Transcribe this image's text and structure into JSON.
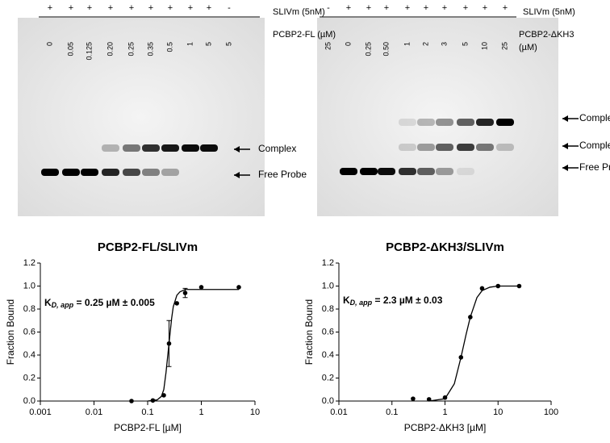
{
  "gels": [
    {
      "sign_row": [
        "+",
        "+",
        "+",
        "+",
        "+",
        "+",
        "+",
        "+",
        "+",
        "-"
      ],
      "sign_label": "SLIVm (5nM)",
      "conc_row": [
        "0",
        "0.05",
        "0.125",
        "0.20",
        "0.25",
        "0.35",
        "0.5",
        "1",
        "5",
        "5"
      ],
      "conc_label": [
        "PCBP2-FL (µM)"
      ],
      "arrows": [
        "Complex",
        "Free Probe"
      ]
    },
    {
      "sign_row": [
        "-",
        "+",
        "+",
        "+",
        "+",
        "+",
        "+",
        "+",
        "+",
        "+"
      ],
      "sign_label": "SLIVm (5nM)",
      "conc_row": [
        "25",
        "0",
        "0.25",
        "0.50",
        "1",
        "2",
        "3",
        "5",
        "10",
        "25"
      ],
      "conc_label": [
        "PCBP2-ΔKH3",
        "(µM)"
      ],
      "arrows": [
        "Complex II",
        "Complex I",
        "Free Probe"
      ]
    }
  ],
  "chart_data": [
    {
      "type": "scatter",
      "title": "PCBP2-FL/SLIVm",
      "x_label": "PCBP2-FL [µM]",
      "y_label": "Fraction Bound",
      "xscale": "log",
      "xlim": [
        0.001,
        10
      ],
      "xticks": [
        0.001,
        0.01,
        0.1,
        1,
        10
      ],
      "ylim": [
        0,
        1.2
      ],
      "yticks": [
        {
          "value": 0,
          "label": "0.0"
        },
        0.2,
        0.4,
        0.6,
        0.8,
        {
          "value": 1,
          "label": "1.0"
        },
        1.2
      ],
      "color": "#000000",
      "annotation": {
        "k": "K",
        "sub": "D, app",
        "text": " = 0.25 µM ± 0.005"
      },
      "points": {
        "x": [
          0.05,
          0.125,
          0.2,
          0.25,
          0.35,
          0.5,
          1,
          5
        ],
        "values": [
          0.0,
          0.005,
          0.05,
          0.5,
          0.85,
          0.94,
          0.99,
          0.99
        ],
        "errors": [
          null,
          null,
          null,
          0.2,
          null,
          0.04,
          null,
          null
        ]
      },
      "curve": {
        "x": [
          0.1,
          0.15,
          0.18,
          0.2,
          0.22,
          0.25,
          0.28,
          0.3,
          0.35,
          0.4,
          0.5,
          1,
          5
        ],
        "values": [
          0,
          0.01,
          0.04,
          0.1,
          0.25,
          0.5,
          0.72,
          0.82,
          0.92,
          0.95,
          0.97,
          0.97,
          0.97
        ]
      }
    },
    {
      "type": "scatter",
      "title": "PCBP2-ΔKH3/SLIVm",
      "x_label": "PCBP2-ΔKH3 [µM]",
      "y_label": "Fraction Bound",
      "xscale": "log",
      "xlim": [
        0.01,
        100
      ],
      "xticks": [
        0.01,
        0.1,
        1,
        10,
        100
      ],
      "ylim": [
        0,
        1.2
      ],
      "yticks": [
        {
          "value": 0,
          "label": "0.0"
        },
        0.2,
        0.4,
        0.6,
        0.8,
        {
          "value": 1,
          "label": "1.0"
        },
        1.2
      ],
      "color": "#000000",
      "annotation": {
        "k": "K",
        "sub": "D, app",
        "text": " = 2.3 µM ± 0.03"
      },
      "points": {
        "x": [
          0.25,
          0.5,
          1,
          2,
          3,
          5,
          10,
          25
        ],
        "values": [
          0.02,
          0.015,
          0.03,
          0.38,
          0.73,
          0.98,
          1.0,
          1.0
        ],
        "errors": [
          null,
          null,
          null,
          null,
          null,
          null,
          null,
          null
        ]
      },
      "curve": {
        "x": [
          0.5,
          1,
          1.5,
          2,
          2.5,
          3,
          4,
          5,
          7,
          10,
          25
        ],
        "values": [
          0,
          0.02,
          0.15,
          0.38,
          0.58,
          0.73,
          0.9,
          0.96,
          0.99,
          1.0,
          1.0
        ]
      }
    }
  ]
}
